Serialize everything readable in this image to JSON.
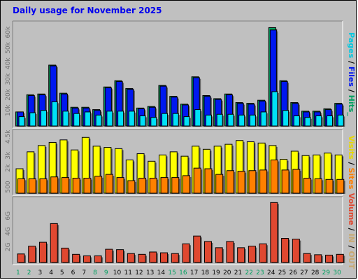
{
  "title": "Daily usage for November 2025",
  "colors": {
    "pages": "#00e0f8",
    "files": "#0018f0",
    "hits": "#00a060",
    "visits": "#ffff00",
    "sites": "#ff8000",
    "volume": "#e04830",
    "in_out": "#d0a070",
    "weekend_label": "#00a060",
    "weekday_label": "#000000"
  },
  "legend": {
    "top": [
      {
        "text": "Pages",
        "color": "#00c8e0"
      },
      {
        "text": " / ",
        "color": "#000000"
      },
      {
        "text": "Files",
        "color": "#0018f0"
      },
      {
        "text": " / ",
        "color": "#000000"
      },
      {
        "text": "Hits",
        "color": "#00a060"
      },
      {
        "text": "_",
        "color": "#00a060"
      }
    ],
    "middle": [
      {
        "text": "Visits",
        "color": "#e8d800"
      },
      {
        "text": " / ",
        "color": "#000000"
      },
      {
        "text": "Sites",
        "color": "#ff8000"
      }
    ],
    "bottom": [
      {
        "text": "Volume",
        "color": "#e04830"
      },
      {
        "text": " / ",
        "color": "#000000"
      },
      {
        "text": "IN",
        "color": "#c8a870"
      },
      {
        "text": " / ",
        "color": "#000000"
      },
      {
        "text": "OUT",
        "color": "#c8a870"
      }
    ]
  },
  "chart_data": {
    "type": "bar",
    "title": "Daily usage for November 2025",
    "categories": [
      "1",
      "2",
      "3",
      "4",
      "5",
      "6",
      "7",
      "8",
      "9",
      "10",
      "11",
      "12",
      "13",
      "14",
      "15",
      "16",
      "17",
      "18",
      "19",
      "20",
      "21",
      "22",
      "23",
      "24",
      "25",
      "26",
      "27",
      "28",
      "29",
      "30"
    ],
    "weekend_days": [
      "1",
      "2",
      "8",
      "9",
      "15",
      "16",
      "22",
      "23",
      "29",
      "30"
    ],
    "panels": [
      {
        "id": "hits",
        "ylim": [
          0,
          65000
        ],
        "ticks": [
          {
            "v": 10000,
            "label": "10k"
          },
          {
            "v": 20000,
            "label": "20k"
          },
          {
            "v": 30000,
            "label": "30k"
          },
          {
            "v": 40000,
            "label": "40k"
          },
          {
            "v": 50000,
            "label": "50k"
          },
          {
            "v": 60000,
            "label": "60k"
          }
        ],
        "series": [
          {
            "name": "Hits",
            "color": "#00a060",
            "values": [
              9000,
              20000,
              20500,
              39000,
              21000,
              12000,
              12000,
              10500,
              25000,
              29000,
              24000,
              11500,
              12500,
              26000,
              19000,
              14000,
              31500,
              19500,
              17500,
              20500,
              15000,
              14500,
              16500,
              63000,
              29000,
              15000,
              9500,
              9500,
              11000,
              14500
            ]
          },
          {
            "name": "Files",
            "color": "#0018f0",
            "values": [
              9000,
              19500,
              20000,
              38500,
              20500,
              11500,
              11500,
              10000,
              24500,
              28500,
              23500,
              11000,
              12000,
              25500,
              18500,
              13500,
              31000,
              19000,
              17000,
              20000,
              14500,
              14000,
              16000,
              61500,
              28500,
              14500,
              9000,
              9000,
              10500,
              14000
            ]
          },
          {
            "name": "Pages",
            "color": "#00e0f8",
            "values": [
              6000,
              8500,
              10000,
              15500,
              9500,
              8000,
              9000,
              7000,
              9500,
              9500,
              9500,
              6500,
              5500,
              8000,
              8000,
              6000,
              10500,
              7000,
              7500,
              7500,
              7000,
              7000,
              9000,
              22000,
              10000,
              6500,
              5500,
              6500,
              6500,
              7000
            ]
          }
        ]
      },
      {
        "id": "visits",
        "ylim": [
          0,
          4800
        ],
        "ticks": [
          {
            "v": 500,
            "label": "500"
          },
          {
            "v": 2000,
            "label": "2k"
          },
          {
            "v": 3000,
            "label": "3k"
          },
          {
            "v": 4500,
            "label": "4.5k"
          }
        ],
        "series": [
          {
            "name": "Visits",
            "color": "#ffff00",
            "values": [
              1950,
              3300,
              3800,
              4050,
              4250,
              3450,
              4450,
              3750,
              3650,
              3550,
              2650,
              3150,
              2550,
              3050,
              3300,
              2950,
              3750,
              3500,
              3750,
              3900,
              4200,
              4100,
              4000,
              3800,
              2700,
              3350,
              3000,
              3050,
              3200,
              3050
            ]
          },
          {
            "name": "Sites",
            "color": "#ff8000",
            "values": [
              1150,
              1150,
              1150,
              1300,
              1250,
              1200,
              1200,
              1350,
              1500,
              1250,
              1000,
              1200,
              1200,
              1250,
              1250,
              1400,
              2000,
              1950,
              1500,
              1800,
              1750,
              1800,
              1850,
              2650,
              1850,
              1900,
              1200,
              1150,
              1100,
              1100
            ]
          }
        ]
      },
      {
        "id": "volume",
        "ylim": [
          0,
          8000
        ],
        "ticks": [
          {
            "v": 2000,
            "label": "2G"
          },
          {
            "v": 4000,
            "label": "4G"
          },
          {
            "v": 6000,
            "label": "6G"
          }
        ],
        "series": [
          {
            "name": "Volume",
            "color": "#e04830",
            "values": [
              1100,
              2100,
              2600,
              5000,
              1850,
              1050,
              850,
              850,
              1700,
              1650,
              1150,
              1050,
              1350,
              1250,
              1150,
              2400,
              3400,
              2700,
              1900,
              2700,
              1900,
              2100,
              2400,
              7700,
              3100,
              3000,
              1150,
              1000,
              950,
              1050
            ]
          }
        ]
      }
    ]
  }
}
